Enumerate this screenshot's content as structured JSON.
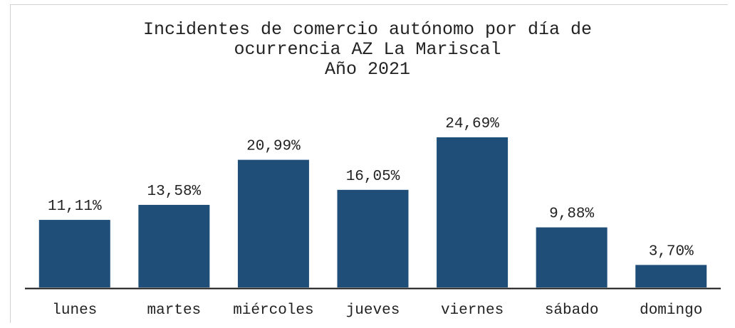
{
  "chart_data": {
    "type": "bar",
    "title": "Incidentes de comercio autónomo por día de ocurrencia AZ La Mariscal",
    "subtitle": "Año 2021",
    "categories": [
      "lunes",
      "martes",
      "miércoles",
      "jueves",
      "viernes",
      "sábado",
      "domingo"
    ],
    "values": [
      11.11,
      13.58,
      20.99,
      16.05,
      24.69,
      9.88,
      3.7
    ],
    "value_labels": [
      "11,11%",
      "13,58%",
      "20,99%",
      "16,05%",
      "24,69%",
      "9,88%",
      "3,70%"
    ],
    "color": "#1f4e79"
  }
}
